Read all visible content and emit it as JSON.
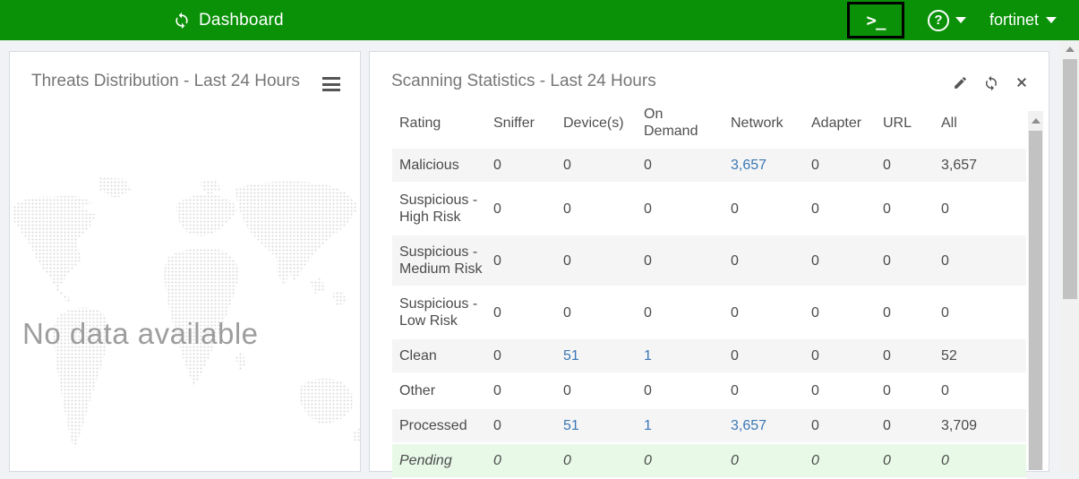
{
  "header": {
    "title": "Dashboard",
    "user_menu": "fortinet",
    "console_glyph": ">_",
    "help_glyph": "?"
  },
  "panels": {
    "threats": {
      "title": "Threats Distribution - Last 24 Hours",
      "empty_text": "No data available"
    },
    "scanning": {
      "title": "Scanning Statistics - Last 24 Hours",
      "table": {
        "columns": [
          "Rating",
          "Sniffer",
          "Device(s)",
          "On Demand",
          "Network",
          "Adapter",
          "URL",
          "All"
        ],
        "rows": [
          {
            "label": "Malicious",
            "bg": "alt",
            "cells": [
              {
                "t": "0"
              },
              {
                "t": "0"
              },
              {
                "t": "0"
              },
              {
                "t": "3,657",
                "link": true
              },
              {
                "t": "0"
              },
              {
                "t": "0"
              },
              {
                "t": "3,657"
              }
            ]
          },
          {
            "label": "Suspicious - High Risk",
            "bg": "plain",
            "cells": [
              {
                "t": "0"
              },
              {
                "t": "0"
              },
              {
                "t": "0"
              },
              {
                "t": "0"
              },
              {
                "t": "0"
              },
              {
                "t": "0"
              },
              {
                "t": "0"
              }
            ]
          },
          {
            "label": "Suspicious - Medium Risk",
            "bg": "alt",
            "cells": [
              {
                "t": "0"
              },
              {
                "t": "0"
              },
              {
                "t": "0"
              },
              {
                "t": "0"
              },
              {
                "t": "0"
              },
              {
                "t": "0"
              },
              {
                "t": "0"
              }
            ]
          },
          {
            "label": "Suspicious - Low Risk",
            "bg": "plain",
            "cells": [
              {
                "t": "0"
              },
              {
                "t": "0"
              },
              {
                "t": "0"
              },
              {
                "t": "0"
              },
              {
                "t": "0"
              },
              {
                "t": "0"
              },
              {
                "t": "0"
              }
            ]
          },
          {
            "label": "Clean",
            "bg": "alt",
            "cells": [
              {
                "t": "0"
              },
              {
                "t": "51",
                "link": true
              },
              {
                "t": "1",
                "link": true
              },
              {
                "t": "0"
              },
              {
                "t": "0"
              },
              {
                "t": "0"
              },
              {
                "t": "52"
              }
            ]
          },
          {
            "label": "Other",
            "bg": "plain",
            "cells": [
              {
                "t": "0"
              },
              {
                "t": "0"
              },
              {
                "t": "0"
              },
              {
                "t": "0"
              },
              {
                "t": "0"
              },
              {
                "t": "0"
              },
              {
                "t": "0"
              }
            ]
          },
          {
            "label": "Processed",
            "bg": "alt",
            "cells": [
              {
                "t": "0"
              },
              {
                "t": "51",
                "link": true
              },
              {
                "t": "1",
                "link": true
              },
              {
                "t": "3,657",
                "link": true
              },
              {
                "t": "0"
              },
              {
                "t": "0"
              },
              {
                "t": "3,709"
              }
            ]
          },
          {
            "label": "Pending",
            "bg": "pending",
            "cells": [
              {
                "t": "0"
              },
              {
                "t": "0"
              },
              {
                "t": "0"
              },
              {
                "t": "0"
              },
              {
                "t": "0"
              },
              {
                "t": "0"
              },
              {
                "t": "0"
              }
            ]
          }
        ]
      }
    }
  },
  "colors": {
    "topbar": "#0a9108",
    "link": "#3a77b5",
    "pending_bg": "#e8f9e8",
    "alt_row": "#f5f5f5",
    "title_text": "#767676",
    "body_text": "#4b4b4b",
    "panel_border": "#d7dce2",
    "scrollbar_thumb": "#c2c2c2",
    "scrollbar_track": "#f1f1f1",
    "map_dot": "#d9d9d9",
    "no_data_text": "#9d9d9d"
  }
}
